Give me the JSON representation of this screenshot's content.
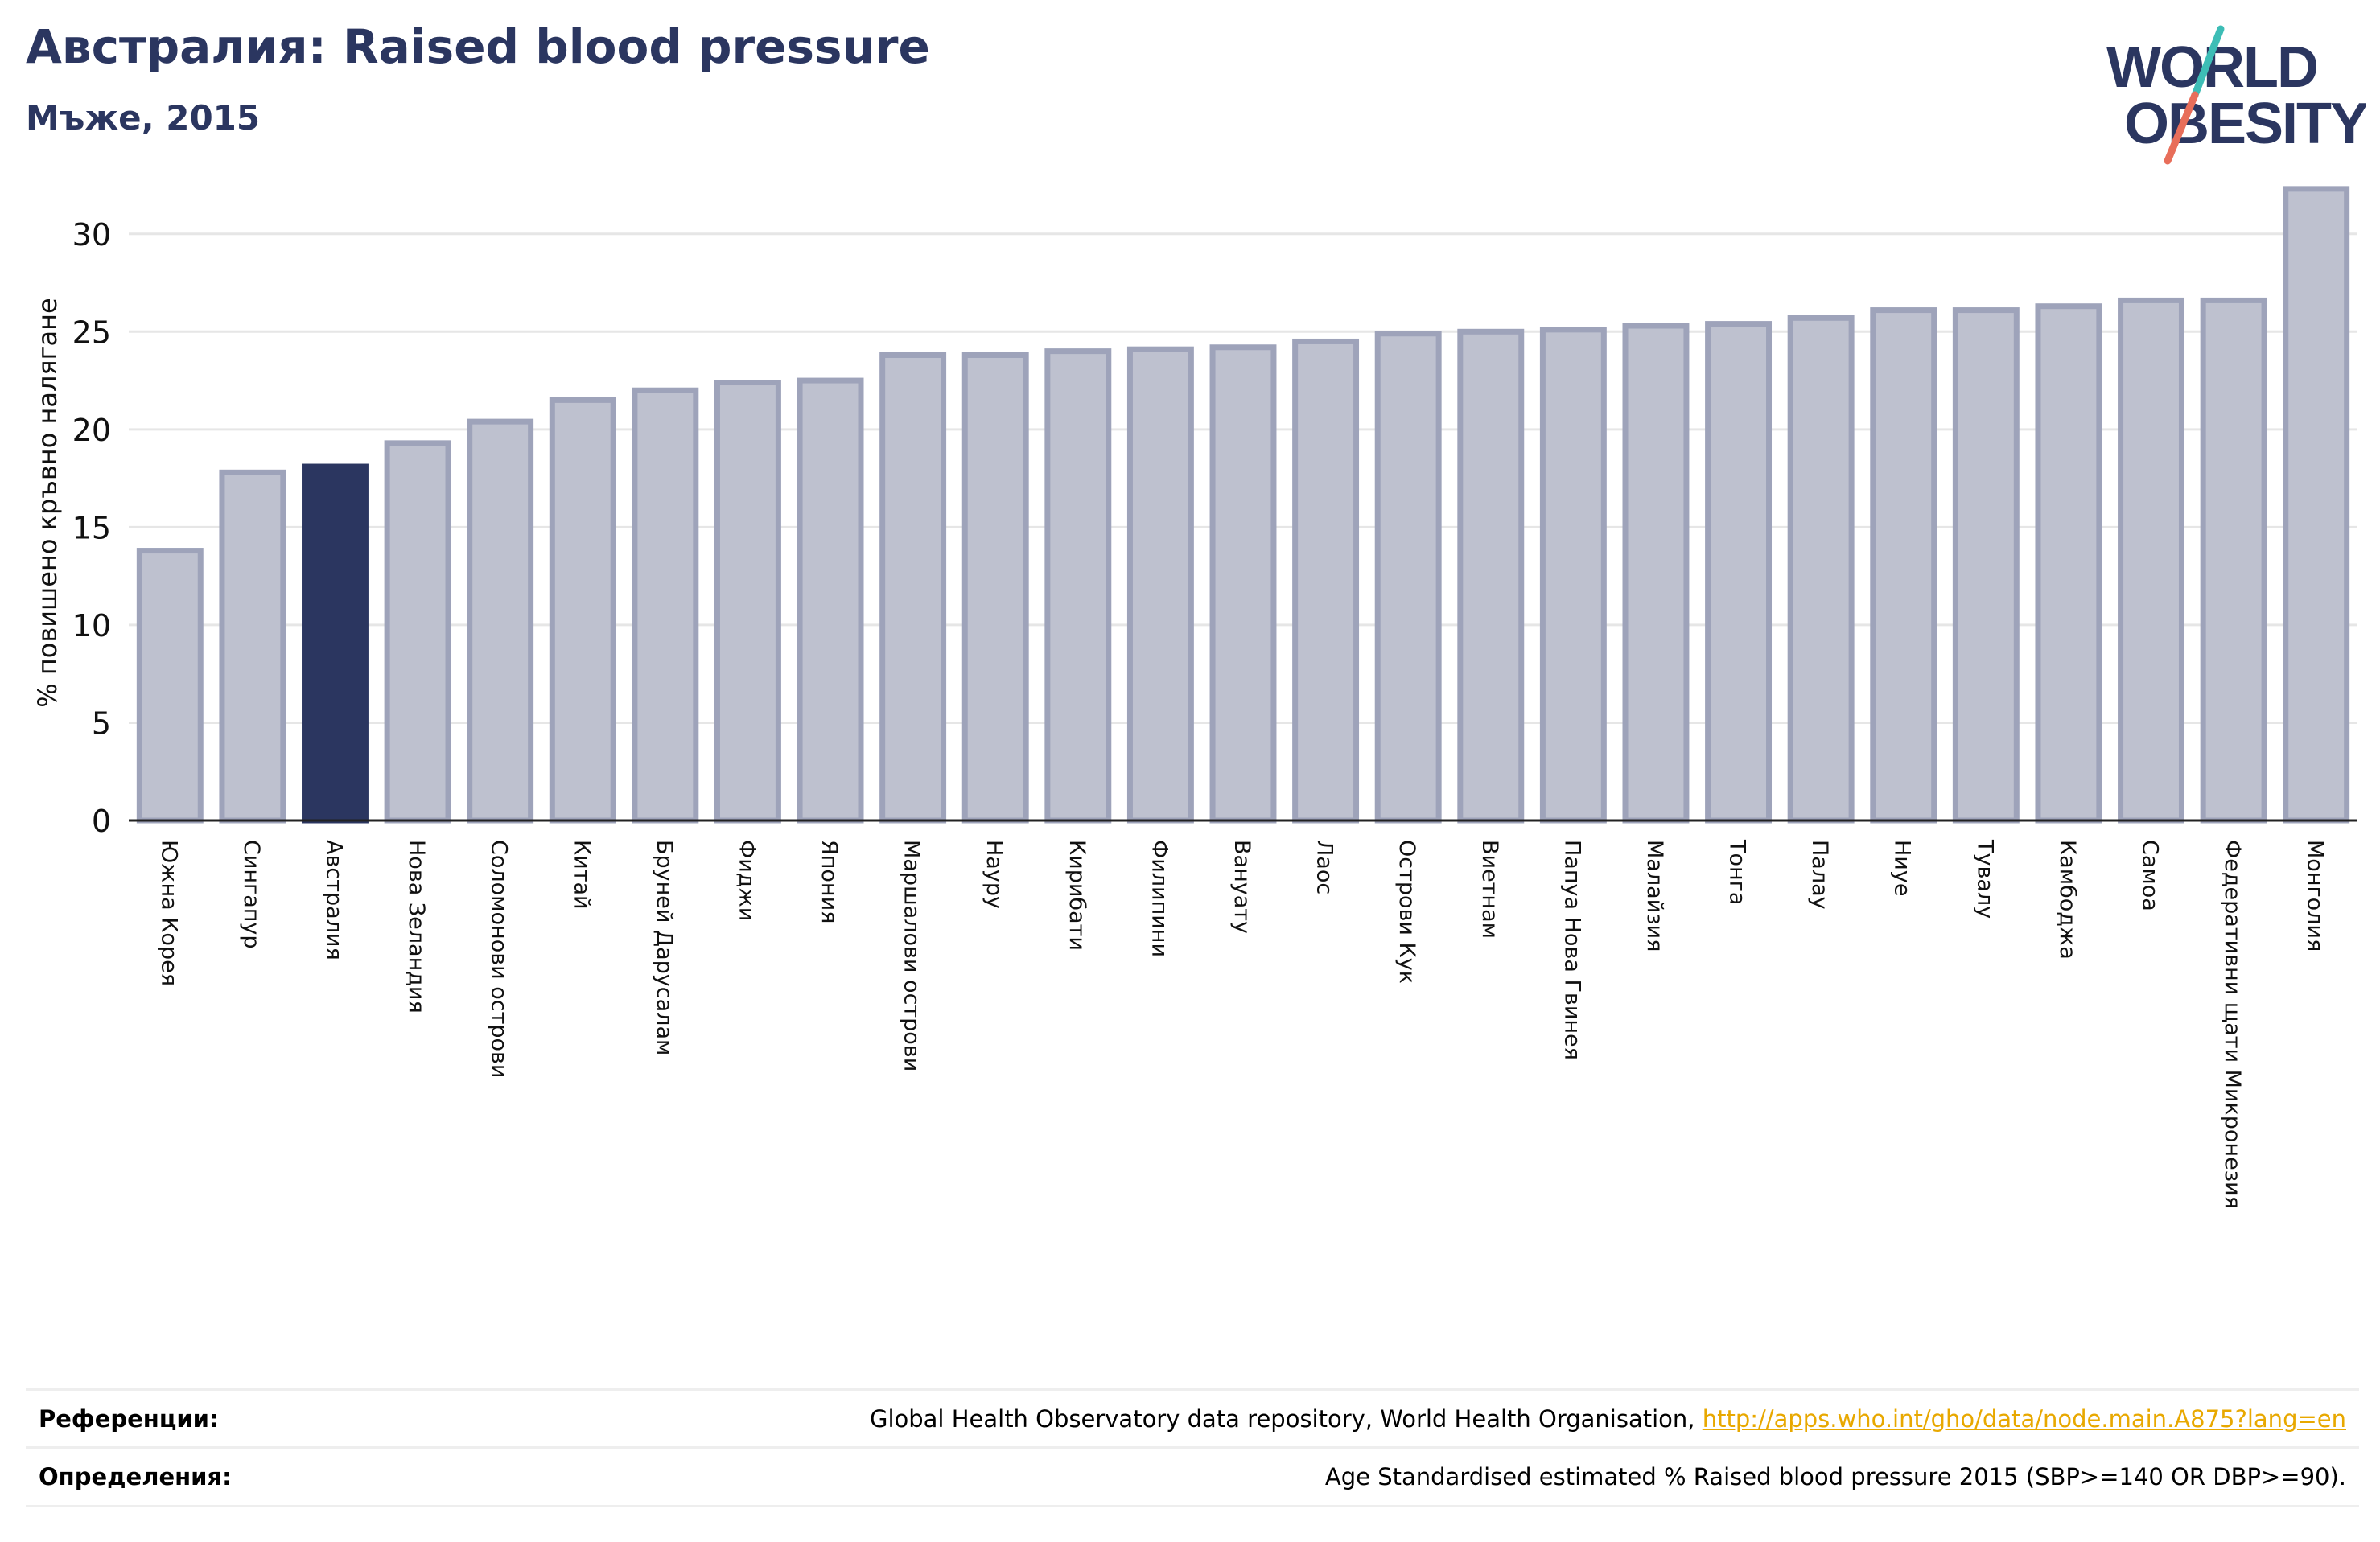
{
  "header": {
    "title": "Австралия: Raised blood pressure",
    "subtitle": "Мъже, 2015"
  },
  "logo": {
    "line1": "WORLD",
    "line2": "OBESITY"
  },
  "colors": {
    "bar": "#bec1cf",
    "bar_edge": "#9ea3ba",
    "highlight": "#2b3660",
    "title": "#2b3660",
    "link": "#e8a800"
  },
  "chart_data": {
    "type": "bar",
    "ylabel": "% повишено кръвно налягане",
    "ylim": [
      0,
      32.5
    ],
    "yticks": [
      0,
      5,
      10,
      15,
      20,
      25,
      30
    ],
    "grid": true,
    "highlight": "Австралия",
    "categories": [
      "Южна Корея",
      "Сингапур",
      "Австралия",
      "Нова Зеландия",
      "Соломонови острови",
      "Китай",
      "Бруней Дарусалам",
      "Фиджи",
      "Япония",
      "Маршалови острови",
      "Науру",
      "Кирибати",
      "Филипини",
      "Вануату",
      "Лаос",
      "Острови Кук",
      "Виетнам",
      "Папуа Нова Гвинея",
      "Малайзия",
      "Тонга",
      "Палау",
      "Ниуе",
      "Тувалу",
      "Камбоджа",
      "Самоа",
      "Федеративни щати Микронезия",
      "Монголия"
    ],
    "values": [
      13.8,
      17.8,
      18.1,
      19.3,
      20.4,
      21.5,
      22.0,
      22.4,
      22.5,
      23.8,
      23.8,
      24.0,
      24.1,
      24.2,
      24.5,
      24.9,
      25.0,
      25.1,
      25.3,
      25.4,
      25.7,
      26.1,
      26.1,
      26.3,
      26.6,
      26.6,
      32.3
    ]
  },
  "references": {
    "refs_label": "Референции:",
    "refs_text": "Global Health Observatory data repository, World Health Organisation, ",
    "refs_link": "http://apps.who.int/gho/data/node.main.A875?lang=en",
    "defs_label": "Определения:",
    "defs_text": "Age Standardised estimated % Raised blood pressure 2015 (SBP>=140 OR DBP>=90)."
  }
}
